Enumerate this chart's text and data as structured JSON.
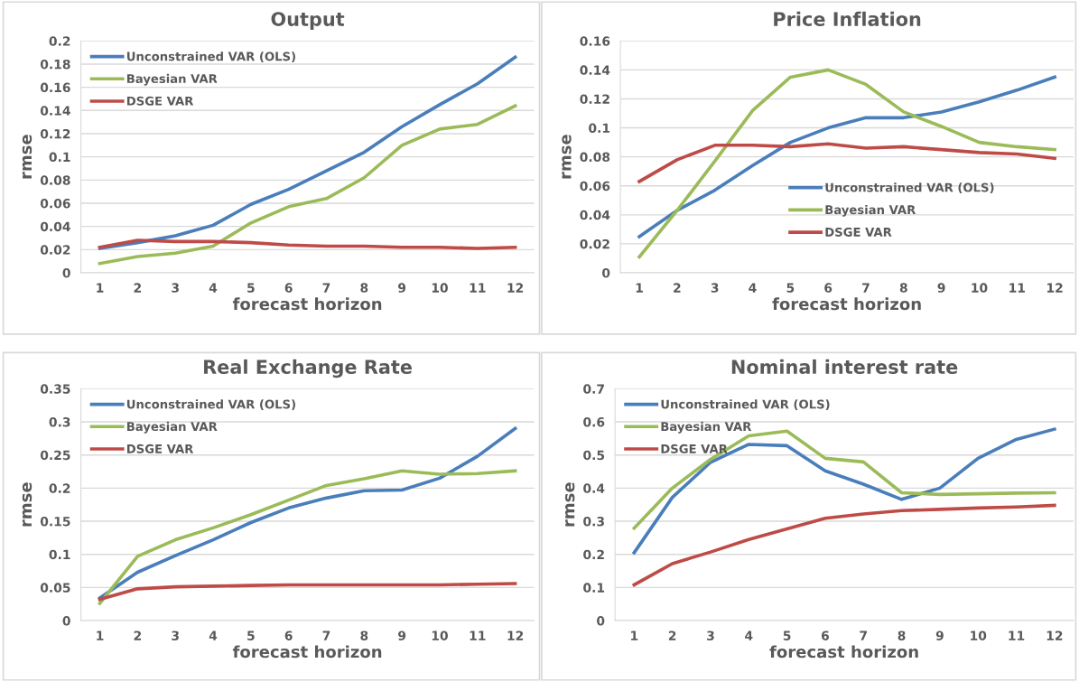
{
  "chart_data": [
    {
      "type": "line",
      "title": "Output",
      "xlabel": "forecast horizon",
      "ylabel": "rmse",
      "categories": [
        "1",
        "2",
        "3",
        "4",
        "5",
        "6",
        "7",
        "8",
        "9",
        "10",
        "11",
        "12"
      ],
      "ylim": [
        0,
        0.2
      ],
      "yticks": [
        0,
        0.02,
        0.04,
        0.06,
        0.08,
        0.1,
        0.12,
        0.14,
        0.16,
        0.18,
        0.2
      ],
      "grid": "y",
      "legend": "top left",
      "series": [
        {
          "name": "Unconstrained VAR (OLS)",
          "color": "#4a7ebb",
          "values": [
            0.021,
            0.026,
            0.032,
            0.041,
            0.059,
            0.072,
            0.088,
            0.104,
            0.126,
            0.145,
            0.163,
            0.186
          ]
        },
        {
          "name": "Bayesian VAR",
          "color": "#9bbb59",
          "values": [
            0.008,
            0.014,
            0.017,
            0.023,
            0.043,
            0.057,
            0.064,
            0.082,
            0.11,
            0.124,
            0.128,
            0.144
          ]
        },
        {
          "name": "DSGE VAR",
          "color": "#be4b48",
          "values": [
            0.022,
            0.028,
            0.027,
            0.027,
            0.026,
            0.024,
            0.023,
            0.023,
            0.022,
            0.022,
            0.021,
            0.022
          ]
        }
      ]
    },
    {
      "type": "line",
      "title": "Price Inflation",
      "xlabel": "forecast horizon",
      "ylabel": "rmse",
      "categories": [
        "1",
        "2",
        "3",
        "4",
        "5",
        "6",
        "7",
        "8",
        "9",
        "10",
        "11",
        "12"
      ],
      "ylim": [
        0,
        0.16
      ],
      "yticks": [
        0,
        0.02,
        0.04,
        0.06,
        0.08,
        0.1,
        0.12,
        0.14,
        0.16
      ],
      "grid": "y",
      "legend": "bottom",
      "series": [
        {
          "name": "Unconstrained VAR (OLS)",
          "color": "#4a7ebb",
          "values": [
            0.025,
            0.043,
            0.057,
            0.074,
            0.09,
            0.1,
            0.107,
            0.107,
            0.111,
            0.118,
            0.126,
            0.135
          ]
        },
        {
          "name": "Bayesian VAR",
          "color": "#9bbb59",
          "values": [
            0.011,
            0.043,
            0.077,
            0.112,
            0.135,
            0.14,
            0.13,
            0.111,
            0.101,
            0.09,
            0.087,
            0.085
          ]
        },
        {
          "name": "DSGE VAR",
          "color": "#be4b48",
          "values": [
            0.063,
            0.078,
            0.088,
            0.088,
            0.087,
            0.089,
            0.086,
            0.087,
            0.085,
            0.083,
            0.082,
            0.079
          ]
        }
      ]
    },
    {
      "type": "line",
      "title": "Real Exchange Rate",
      "xlabel": "forecast horizon",
      "ylabel": "rmse",
      "categories": [
        "1",
        "2",
        "3",
        "4",
        "5",
        "6",
        "7",
        "8",
        "9",
        "10",
        "11",
        "12"
      ],
      "ylim": [
        0,
        0.35
      ],
      "yticks": [
        0,
        0.05,
        0.1,
        0.15,
        0.2,
        0.25,
        0.3,
        0.35
      ],
      "grid": "y",
      "legend": "top left",
      "series": [
        {
          "name": "Unconstrained VAR (OLS)",
          "color": "#4a7ebb",
          "values": [
            0.034,
            0.073,
            0.098,
            0.122,
            0.148,
            0.17,
            0.185,
            0.196,
            0.197,
            0.215,
            0.248,
            0.29
          ]
        },
        {
          "name": "Bayesian VAR",
          "color": "#9bbb59",
          "values": [
            0.026,
            0.097,
            0.122,
            0.14,
            0.16,
            0.182,
            0.204,
            0.214,
            0.226,
            0.221,
            0.222,
            0.226
          ]
        },
        {
          "name": "DSGE VAR",
          "color": "#be4b48",
          "values": [
            0.032,
            0.048,
            0.051,
            0.052,
            0.053,
            0.054,
            0.054,
            0.054,
            0.054,
            0.054,
            0.055,
            0.056
          ]
        }
      ]
    },
    {
      "type": "line",
      "title": "Nominal interest rate",
      "xlabel": "forecast horizon",
      "ylabel": "rmse",
      "categories": [
        "1",
        "2",
        "3",
        "4",
        "5",
        "6",
        "7",
        "8",
        "9",
        "10",
        "11",
        "12"
      ],
      "ylim": [
        0,
        0.7
      ],
      "yticks": [
        0,
        0.1,
        0.2,
        0.3,
        0.4,
        0.5,
        0.6,
        0.7
      ],
      "grid": "y",
      "legend": "top left",
      "series": [
        {
          "name": "Unconstrained VAR (OLS)",
          "color": "#4a7ebb",
          "values": [
            0.205,
            0.372,
            0.478,
            0.532,
            0.528,
            0.452,
            0.412,
            0.366,
            0.4,
            0.49,
            0.547,
            0.578
          ]
        },
        {
          "name": "Bayesian VAR",
          "color": "#9bbb59",
          "values": [
            0.279,
            0.4,
            0.487,
            0.558,
            0.572,
            0.49,
            0.479,
            0.386,
            0.381,
            0.383,
            0.385,
            0.386
          ]
        },
        {
          "name": "DSGE VAR",
          "color": "#be4b48",
          "values": [
            0.108,
            0.172,
            0.207,
            0.245,
            0.277,
            0.309,
            0.322,
            0.332,
            0.336,
            0.34,
            0.343,
            0.348
          ]
        }
      ]
    }
  ]
}
